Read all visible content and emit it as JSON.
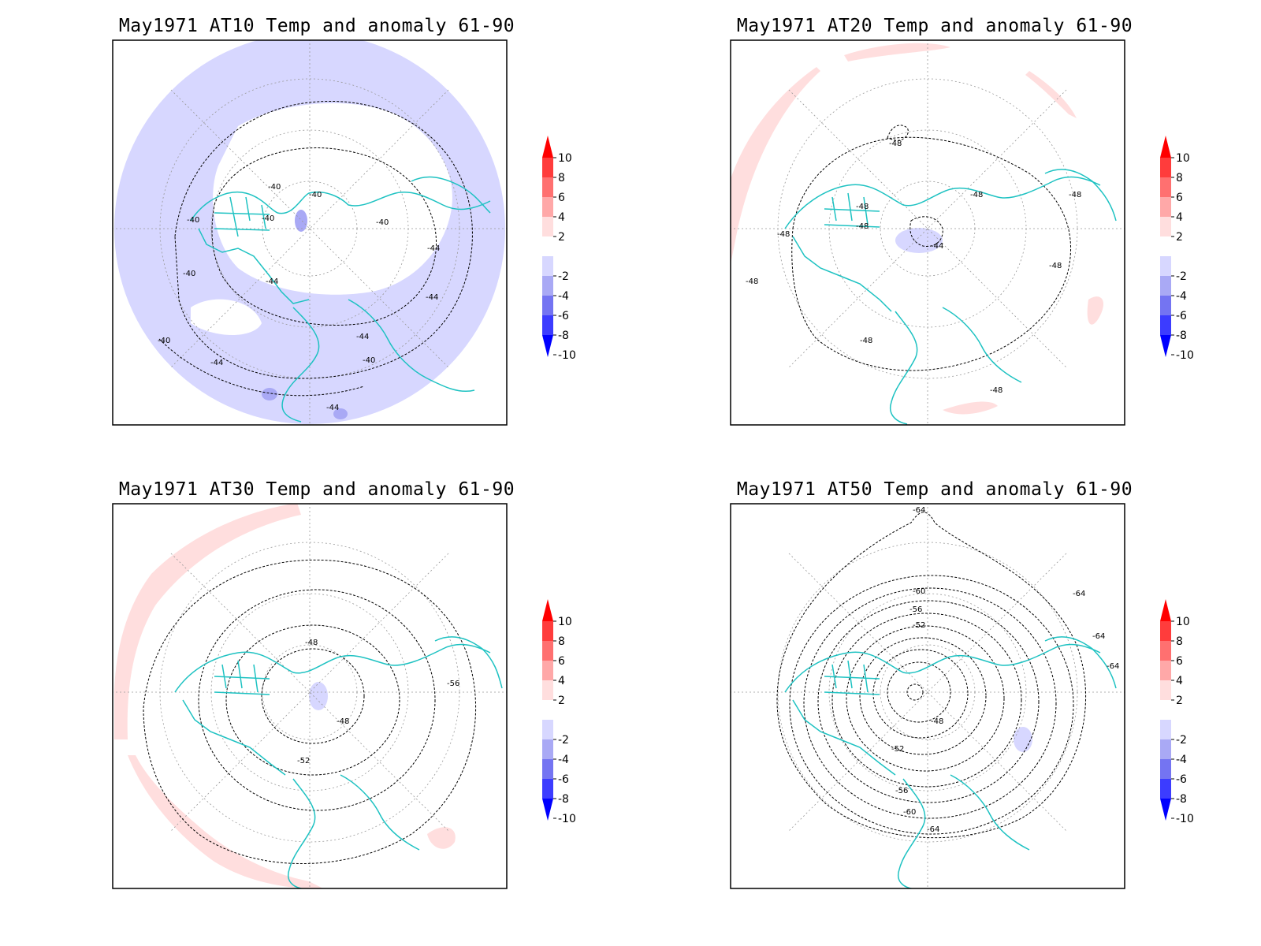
{
  "colors": {
    "coastline": "#1ec2c2",
    "contour": "#000000",
    "grid": "#999999",
    "neg_light": "#d7d7ff",
    "neg_mid": "#a9a9f5",
    "pos_light": "#ffdede"
  },
  "colorbar": {
    "labels": [
      "10",
      "8",
      "6",
      "4",
      "2",
      "-2",
      "-4",
      "-6",
      "-8",
      "-10"
    ],
    "colors": [
      "#ff0000",
      "#ff3c3c",
      "#ff7070",
      "#ffa8a8",
      "#ffdede",
      "#ffffff",
      "#d7d7ff",
      "#a9a9f5",
      "#7474f2",
      "#3c3cff",
      "#0000ff"
    ]
  },
  "panels": [
    {
      "title": "May1971 AT10 Temp and anomaly 61-90",
      "contour_labels": [
        "-40",
        "-40",
        "-40",
        "-40",
        "-40",
        "-40",
        "-40",
        "-40",
        "-44",
        "-44",
        "-44",
        "-44",
        "-44",
        "-44"
      ]
    },
    {
      "title": "May1971 AT20 Temp and anomaly 61-90",
      "contour_labels": [
        "-48",
        "-48",
        "-48",
        "-48",
        "-48",
        "-48",
        "-48",
        "-48",
        "-44",
        "-48",
        "-48"
      ]
    },
    {
      "title": "May1971 AT30 Temp and anomaly 61-90",
      "contour_labels": [
        "-48",
        "-48",
        "-52",
        "-56"
      ]
    },
    {
      "title": "May1971 AT50 Temp and anomaly 61-90",
      "contour_labels": [
        "-64",
        "-60",
        "-56",
        "-52",
        "-48",
        "-52",
        "-56",
        "-60",
        "-64",
        "-64",
        "-64",
        "-64"
      ]
    }
  ]
}
